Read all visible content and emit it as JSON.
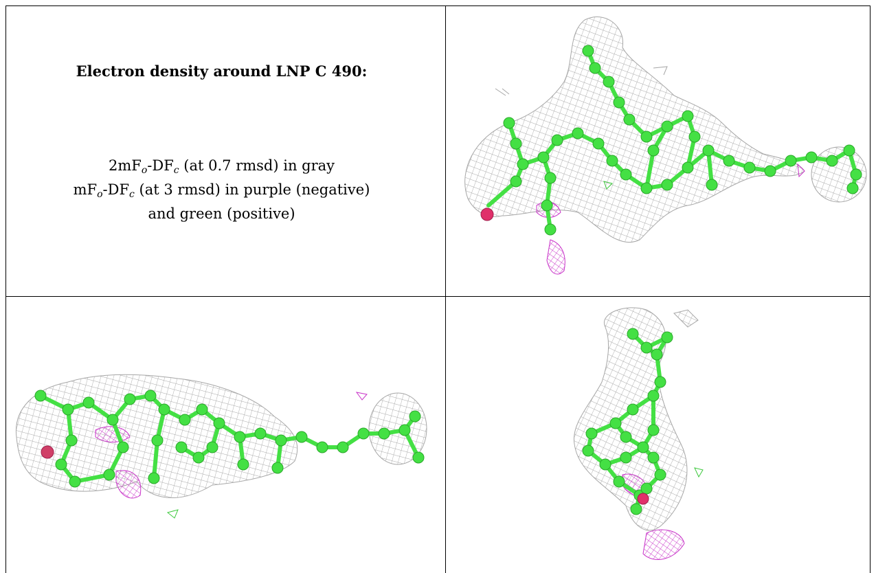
{
  "caption": {
    "title": "Electron density around LNP C 490:",
    "line1": {
      "prefix": "2mF",
      "sub1": "o",
      "mid": "-DF",
      "sub2": "c",
      "suffix": " (at 0.7 rmsd) in gray"
    },
    "line2": {
      "prefix": "mF",
      "sub1": "o",
      "mid": "-DF",
      "sub2": "c",
      "suffix": " (at 3 rmsd) in purple (negative)"
    },
    "line3": "and green (positive)"
  },
  "colors": {
    "mesh_gray": "#a6a6a6",
    "mesh_purple": "#c832c8",
    "mesh_green": "#3cc83c",
    "carbon": "#44e044",
    "oxygen": "#e0306a",
    "border": "#000000"
  },
  "panels": [
    {
      "name": "density-view-top-right",
      "view": "front"
    },
    {
      "name": "density-view-bottom-left",
      "view": "side"
    },
    {
      "name": "density-view-bottom-right",
      "view": "end-on"
    }
  ]
}
